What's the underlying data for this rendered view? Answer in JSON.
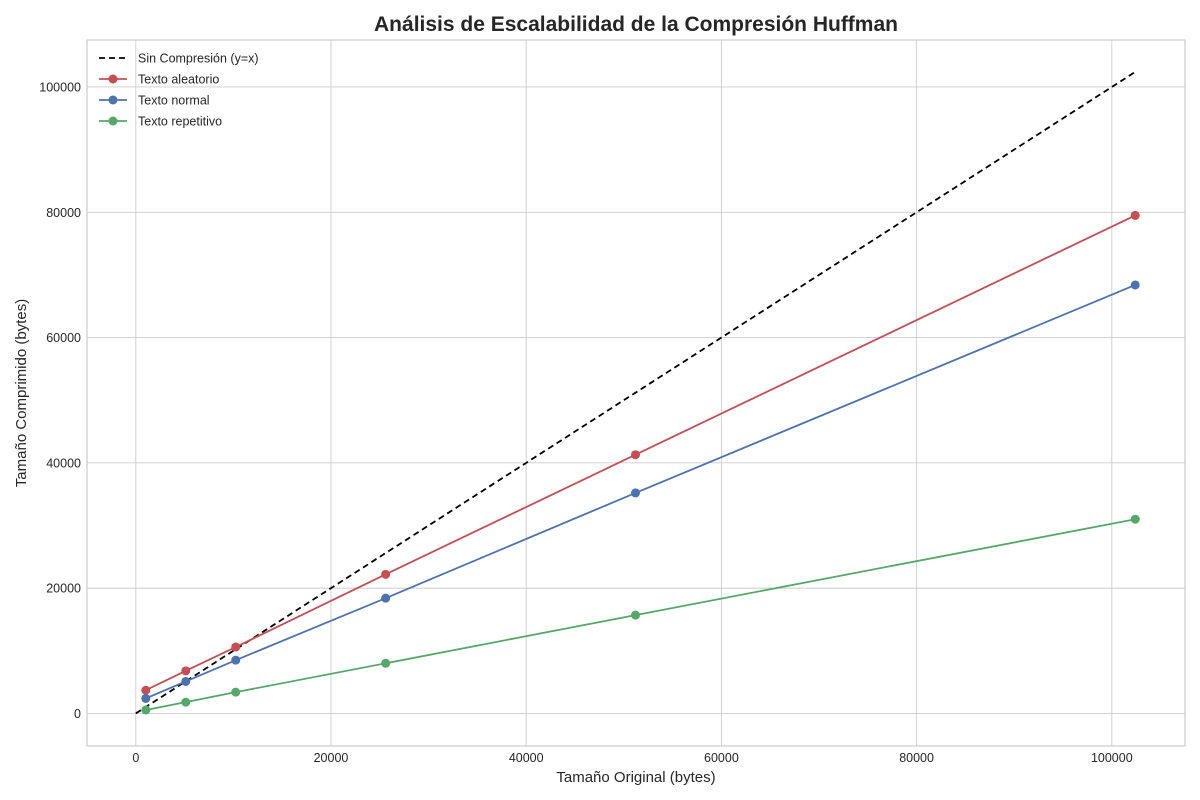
{
  "chart_data": {
    "type": "line",
    "title": "Análisis de Escalabilidad de la Compresión Huffman",
    "xlabel": "Tamaño Original (bytes)",
    "ylabel": "Tamaño Comprimido (bytes)",
    "xlim": [
      -5000,
      107500
    ],
    "ylim": [
      -5200,
      107500
    ],
    "xticks": [
      0,
      20000,
      40000,
      60000,
      80000,
      100000
    ],
    "yticks": [
      0,
      20000,
      40000,
      60000,
      80000,
      100000
    ],
    "xtick_labels": [
      "0",
      "20000",
      "40000",
      "60000",
      "80000",
      "100000"
    ],
    "ytick_labels": [
      "0",
      "20000",
      "40000",
      "60000",
      "80000",
      "100000"
    ],
    "grid": true,
    "legend_position": "top-left",
    "series": [
      {
        "name": "Sin Compresión (y=x)",
        "color": "#000000",
        "dashed": true,
        "marker": false,
        "x": [
          0,
          102400
        ],
        "y": [
          0,
          102400
        ]
      },
      {
        "name": "Texto aleatorio",
        "color": "#c44e52",
        "dashed": false,
        "marker": true,
        "x": [
          1024,
          5120,
          10240,
          25600,
          51200,
          102400
        ],
        "y": [
          3700,
          6800,
          10600,
          22200,
          41300,
          79500
        ]
      },
      {
        "name": "Texto normal",
        "color": "#4c72b0",
        "dashed": false,
        "marker": true,
        "x": [
          1024,
          5120,
          10240,
          25600,
          51200,
          102400
        ],
        "y": [
          2400,
          5100,
          8500,
          18400,
          35200,
          68400
        ]
      },
      {
        "name": "Texto repetitivo",
        "color": "#55a868",
        "dashed": false,
        "marker": true,
        "x": [
          1024,
          5120,
          10240,
          25600,
          51200,
          102400
        ],
        "y": [
          550,
          1800,
          3400,
          8000,
          15700,
          31000
        ]
      }
    ]
  }
}
